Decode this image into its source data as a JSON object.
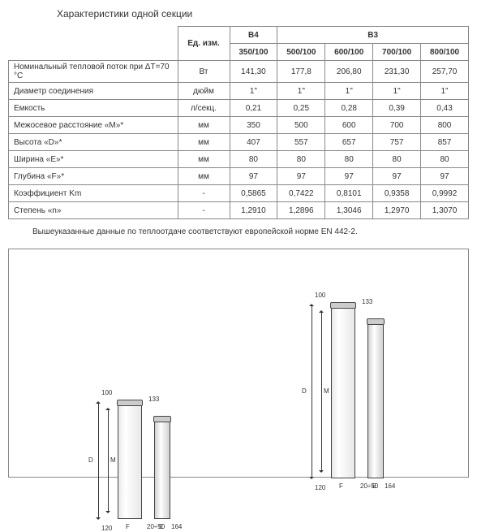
{
  "title": "Характеристики одной секции",
  "table": {
    "header_unit": "Ед. изм.",
    "header_b4": "B4",
    "header_b3": "B3",
    "sizes": [
      "350/100",
      "500/100",
      "600/100",
      "700/100",
      "800/100"
    ],
    "rows": [
      {
        "label": "Номинальный тепловой поток при ΔT=70 °C",
        "unit": "Вт",
        "vals": [
          "141,30",
          "177,8",
          "206,80",
          "231,30",
          "257,70"
        ]
      },
      {
        "label": "Диаметр соединения",
        "unit": "дюйм",
        "vals": [
          "1\"",
          "1\"",
          "1\"",
          "1\"",
          "1\""
        ]
      },
      {
        "label": "Емкость",
        "unit": "л/секц.",
        "vals": [
          "0,21",
          "0,25",
          "0,28",
          "0,39",
          "0,43"
        ]
      },
      {
        "label": "Межосевое расстояние «M»*",
        "unit": "мм",
        "vals": [
          "350",
          "500",
          "600",
          "700",
          "800"
        ]
      },
      {
        "label": "Высота «D»*",
        "unit": "мм",
        "vals": [
          "407",
          "557",
          "657",
          "757",
          "857"
        ]
      },
      {
        "label": "Ширина «E»*",
        "unit": "мм",
        "vals": [
          "80",
          "80",
          "80",
          "80",
          "80"
        ]
      },
      {
        "label": "Глубина «F»*",
        "unit": "мм",
        "vals": [
          "97",
          "97",
          "97",
          "97",
          "97"
        ]
      },
      {
        "label": "Коэффициент Km",
        "unit": "-",
        "vals": [
          "0,5865",
          "0,7422",
          "0,8101",
          "0,9358",
          "0,9992"
        ]
      },
      {
        "label": "Степень «n»",
        "unit": "-",
        "vals": [
          "1,2910",
          "1,2896",
          "1,3046",
          "1,2970",
          "1,3070"
        ]
      }
    ]
  },
  "note": "Вышеуказанные данные по теплоотдаче соответствуют европейской норме EN 442-2.",
  "diagram_labels": {
    "d100": "100",
    "d133": "133",
    "d120": "120",
    "d164": "164",
    "d2050": "20÷50",
    "D": "D",
    "M": "M",
    "F": "F",
    "E": "E"
  },
  "colors": {
    "border": "#888888",
    "text": "#333333",
    "bg": "#ffffff"
  }
}
